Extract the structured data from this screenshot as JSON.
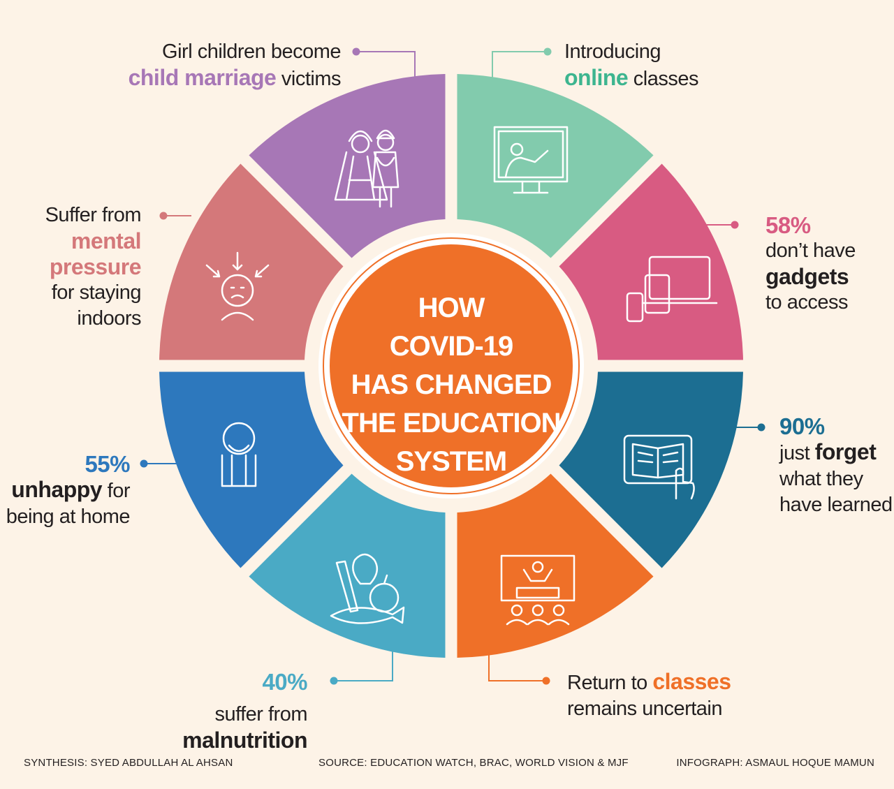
{
  "center_title": [
    "HOW",
    "COVID-19",
    "HAS CHANGED",
    "THE EDUCATION",
    "SYSTEM"
  ],
  "colors": {
    "background": "#fdf3e7",
    "purple": "#a777b6",
    "teal": "#82cbad",
    "pink": "#d85b82",
    "navy": "#1c6e92",
    "orange": "#ef7028",
    "aqua": "#4aaac5",
    "blue": "#2d78bd",
    "rose": "#d4787a",
    "text": "#231f20"
  },
  "segments": [
    {
      "id": "child-marriage",
      "color": "#a777b6",
      "icon": "bride-groom-icon",
      "lines": [
        "Girl children become",
        "child marriage victims"
      ],
      "highlight": "child marriage"
    },
    {
      "id": "online-classes",
      "color": "#82cbad",
      "icon": "online-teacher-icon",
      "lines": [
        "Introducing",
        "online classes"
      ],
      "highlight": "online"
    },
    {
      "id": "gadgets",
      "color": "#d85b82",
      "icon": "devices-icon",
      "stat": "58%",
      "lines": [
        "don’t have",
        "gadgets",
        "to access"
      ],
      "highlight": "gadgets"
    },
    {
      "id": "forget",
      "color": "#1c6e92",
      "icon": "tablet-book-icon",
      "stat": "90%",
      "lines": [
        "just forget",
        "what they",
        "have learned"
      ],
      "highlight": "forget"
    },
    {
      "id": "classes-uncertain",
      "color": "#ef7028",
      "icon": "classroom-icon",
      "lines": [
        "Return to classes",
        "remains uncertain"
      ],
      "highlight": "classes"
    },
    {
      "id": "malnutrition",
      "color": "#4aaac5",
      "icon": "food-icon",
      "stat": "40%",
      "lines": [
        "suffer from malnutrition"
      ],
      "highlight": "malnutrition"
    },
    {
      "id": "unhappy",
      "color": "#2d78bd",
      "icon": "sad-person-icon",
      "stat": "55%",
      "lines": [
        "unhappy for",
        "being at home"
      ],
      "highlight": "unhappy"
    },
    {
      "id": "mental-pressure",
      "color": "#d4787a",
      "icon": "stressed-head-icon",
      "lines": [
        "Suffer from",
        "mental",
        "pressure",
        "for staying",
        "indoors"
      ],
      "highlight": "mental pressure"
    }
  ],
  "footer": {
    "synthesis": "SYNTHESIS: SYED ABDULLAH AL AHSAN",
    "source": "SOURCE: EDUCATION WATCH, BRAC, WORLD VISION & MJF",
    "infograph": "INFOGRAPH: ASMAUL HOQUE MAMUN"
  }
}
